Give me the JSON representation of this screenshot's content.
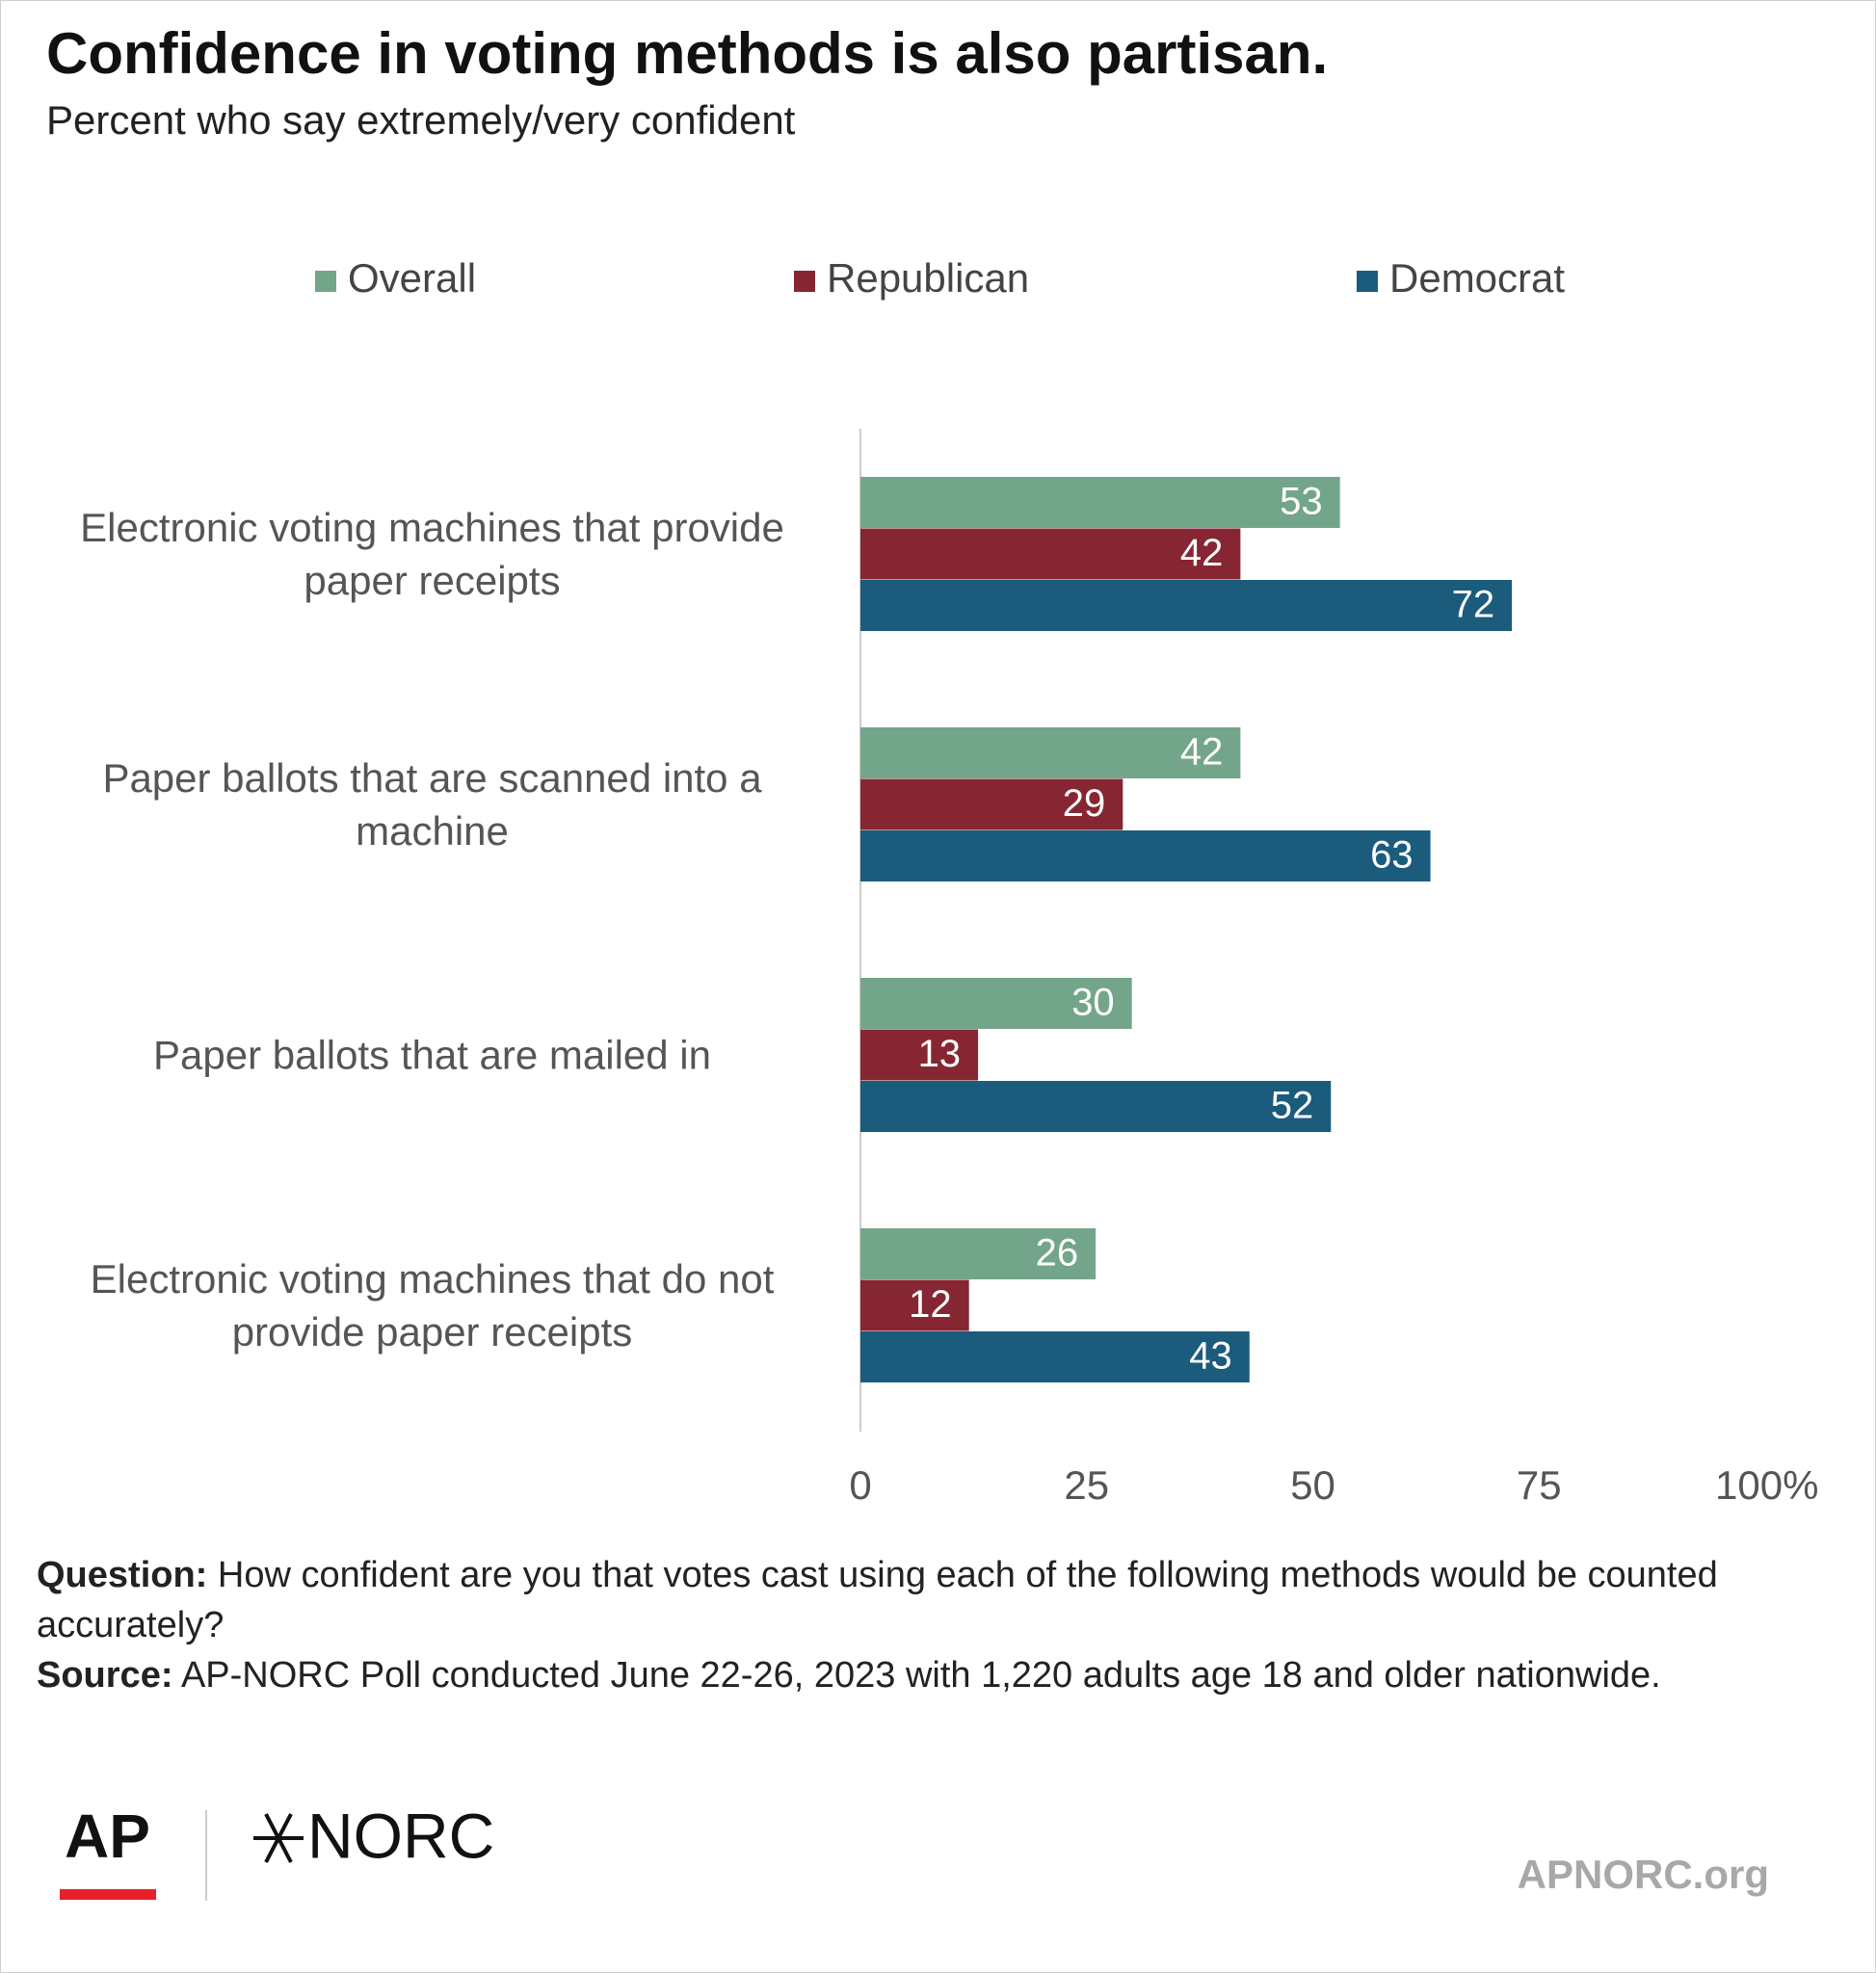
{
  "chart_data": {
    "type": "bar",
    "orientation": "horizontal",
    "title": "Confidence in voting methods is also partisan.",
    "subtitle": "Percent who say extremely/very confident",
    "categories": [
      "Electronic voting machines that provide paper receipts",
      "Paper ballots that are scanned into a machine",
      "Paper ballots that are mailed in",
      "Electronic voting machines that do not provide paper receipts"
    ],
    "series": [
      {
        "name": "Overall",
        "color": "#73a58a",
        "values": [
          53,
          42,
          30,
          26
        ]
      },
      {
        "name": "Republican",
        "color": "#862633",
        "values": [
          42,
          29,
          13,
          12
        ]
      },
      {
        "name": "Democrat",
        "color": "#1b5b7c",
        "values": [
          72,
          63,
          52,
          43
        ]
      }
    ],
    "xlim": [
      0,
      100
    ],
    "xticks": [
      0,
      25,
      50,
      75,
      {
        "value": 100,
        "label": "100%"
      }
    ],
    "legend": "top",
    "question_label": "Question:",
    "question": "How confident are you that votes cast using each of the following methods would be counted accurately?",
    "source_label": "Source:",
    "source": "AP-NORC Poll conducted June 22-26, 2023 with 1,220 adults age 18 and older nationwide."
  },
  "logos": {
    "ap": "AP",
    "norc": "NORC",
    "site": "APNORC.org"
  }
}
